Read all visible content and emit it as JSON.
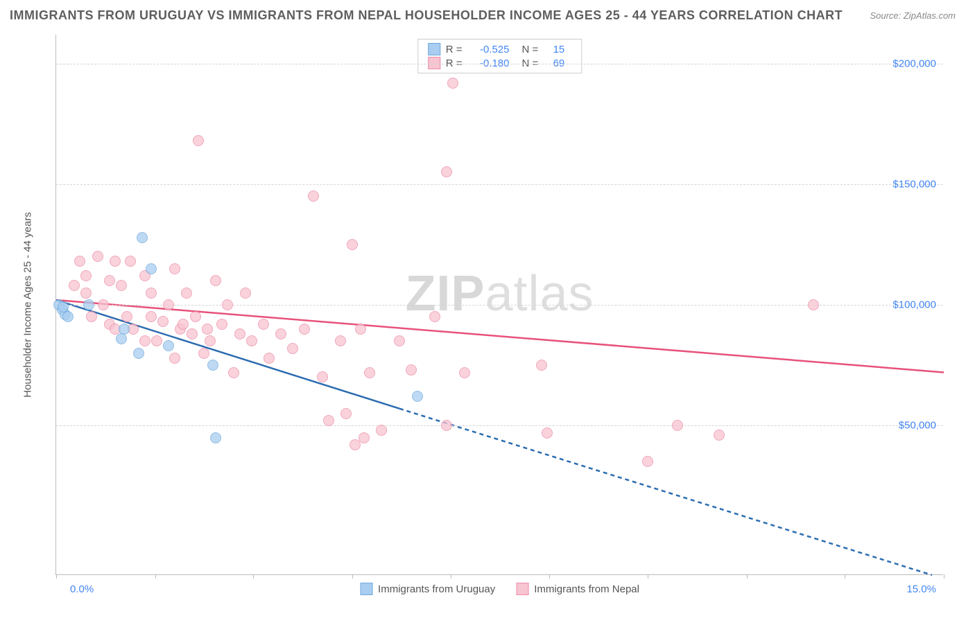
{
  "title": "IMMIGRANTS FROM URUGUAY VS IMMIGRANTS FROM NEPAL HOUSEHOLDER INCOME AGES 25 - 44 YEARS CORRELATION CHART",
  "source": "Source: ZipAtlas.com",
  "watermark_zip": "ZIP",
  "watermark_atlas": "atlas",
  "y_axis_title": "Householder Income Ages 25 - 44 years",
  "x_min_label": "0.0%",
  "x_max_label": "15.0%",
  "series": [
    {
      "name": "Immigrants from Uruguay",
      "color_fill": "#a8cdf0",
      "color_stroke": "#6fa8dc",
      "r_value": "-0.525",
      "n_value": "15",
      "line_color": "#2b6cb0",
      "line": {
        "x1_pct": 0.0,
        "y1_val": 102000,
        "x2_pct": 5.8,
        "y2_val": 57000
      },
      "line_dash": {
        "x1_pct": 5.8,
        "y1_val": 57000,
        "x2_pct": 14.8,
        "y2_val": -12000
      }
    },
    {
      "name": "Immigrants from Nepal",
      "color_fill": "#f7c4d1",
      "color_stroke": "#ec8ba6",
      "r_value": "-0.180",
      "n_value": "69",
      "line_color": "#e8517a",
      "line": {
        "x1_pct": 0.0,
        "y1_val": 102000,
        "x2_pct": 15.0,
        "y2_val": 72000
      }
    }
  ],
  "y_ticks": [
    {
      "value": 50000,
      "label": "$50,000"
    },
    {
      "value": 100000,
      "label": "$100,000"
    },
    {
      "value": 150000,
      "label": "$150,000"
    },
    {
      "value": 200000,
      "label": "$200,000"
    }
  ],
  "x_ticks_pct": [
    0.0,
    1.67,
    3.33,
    5.0,
    6.67,
    8.33,
    10.0,
    11.67,
    13.33,
    15.0
  ],
  "y_range": [
    -12000,
    212000
  ],
  "x_range": [
    0.0,
    15.0
  ],
  "point_radius": 8,
  "points_uruguay": [
    {
      "x": 0.05,
      "y": 100000
    },
    {
      "x": 0.1,
      "y": 98000
    },
    {
      "x": 0.15,
      "y": 96000
    },
    {
      "x": 0.12,
      "y": 99000
    },
    {
      "x": 0.2,
      "y": 95000
    },
    {
      "x": 0.55,
      "y": 100000
    },
    {
      "x": 1.15,
      "y": 90000
    },
    {
      "x": 1.1,
      "y": 86000
    },
    {
      "x": 1.45,
      "y": 128000
    },
    {
      "x": 1.6,
      "y": 115000
    },
    {
      "x": 1.9,
      "y": 83000
    },
    {
      "x": 1.4,
      "y": 80000
    },
    {
      "x": 2.7,
      "y": 45000
    },
    {
      "x": 2.65,
      "y": 75000
    },
    {
      "x": 6.1,
      "y": 62000
    }
  ],
  "points_nepal": [
    {
      "x": 0.3,
      "y": 108000
    },
    {
      "x": 0.4,
      "y": 118000
    },
    {
      "x": 0.5,
      "y": 112000
    },
    {
      "x": 0.6,
      "y": 95000
    },
    {
      "x": 0.7,
      "y": 120000
    },
    {
      "x": 0.5,
      "y": 105000
    },
    {
      "x": 0.8,
      "y": 100000
    },
    {
      "x": 0.9,
      "y": 92000
    },
    {
      "x": 0.9,
      "y": 110000
    },
    {
      "x": 1.0,
      "y": 118000
    },
    {
      "x": 1.0,
      "y": 90000
    },
    {
      "x": 1.1,
      "y": 108000
    },
    {
      "x": 1.2,
      "y": 95000
    },
    {
      "x": 1.25,
      "y": 118000
    },
    {
      "x": 1.3,
      "y": 90000
    },
    {
      "x": 1.5,
      "y": 85000
    },
    {
      "x": 1.5,
      "y": 112000
    },
    {
      "x": 1.6,
      "y": 95000
    },
    {
      "x": 1.6,
      "y": 105000
    },
    {
      "x": 1.7,
      "y": 85000
    },
    {
      "x": 1.8,
      "y": 93000
    },
    {
      "x": 1.9,
      "y": 100000
    },
    {
      "x": 2.0,
      "y": 115000
    },
    {
      "x": 2.0,
      "y": 78000
    },
    {
      "x": 2.1,
      "y": 90000
    },
    {
      "x": 2.15,
      "y": 92000
    },
    {
      "x": 2.2,
      "y": 105000
    },
    {
      "x": 2.3,
      "y": 88000
    },
    {
      "x": 2.35,
      "y": 95000
    },
    {
      "x": 2.4,
      "y": 168000
    },
    {
      "x": 2.5,
      "y": 80000
    },
    {
      "x": 2.55,
      "y": 90000
    },
    {
      "x": 2.6,
      "y": 85000
    },
    {
      "x": 2.7,
      "y": 110000
    },
    {
      "x": 2.8,
      "y": 92000
    },
    {
      "x": 2.9,
      "y": 100000
    },
    {
      "x": 3.0,
      "y": 72000
    },
    {
      "x": 3.1,
      "y": 88000
    },
    {
      "x": 3.2,
      "y": 105000
    },
    {
      "x": 3.3,
      "y": 85000
    },
    {
      "x": 3.5,
      "y": 92000
    },
    {
      "x": 3.6,
      "y": 78000
    },
    {
      "x": 3.8,
      "y": 88000
    },
    {
      "x": 4.0,
      "y": 82000
    },
    {
      "x": 4.2,
      "y": 90000
    },
    {
      "x": 4.35,
      "y": 145000
    },
    {
      "x": 4.5,
      "y": 70000
    },
    {
      "x": 4.6,
      "y": 52000
    },
    {
      "x": 4.8,
      "y": 85000
    },
    {
      "x": 4.9,
      "y": 55000
    },
    {
      "x": 5.0,
      "y": 125000
    },
    {
      "x": 5.05,
      "y": 42000
    },
    {
      "x": 5.15,
      "y": 90000
    },
    {
      "x": 5.2,
      "y": 45000
    },
    {
      "x": 5.3,
      "y": 72000
    },
    {
      "x": 5.5,
      "y": 48000
    },
    {
      "x": 5.8,
      "y": 85000
    },
    {
      "x": 6.0,
      "y": 73000
    },
    {
      "x": 6.4,
      "y": 95000
    },
    {
      "x": 6.6,
      "y": 155000
    },
    {
      "x": 6.7,
      "y": 192000
    },
    {
      "x": 6.6,
      "y": 50000
    },
    {
      "x": 6.9,
      "y": 72000
    },
    {
      "x": 8.2,
      "y": 75000
    },
    {
      "x": 8.3,
      "y": 47000
    },
    {
      "x": 10.0,
      "y": 35000
    },
    {
      "x": 10.5,
      "y": 50000
    },
    {
      "x": 11.2,
      "y": 46000
    },
    {
      "x": 12.8,
      "y": 100000
    }
  ],
  "stats_labels": {
    "r": "R =",
    "n": "N ="
  }
}
